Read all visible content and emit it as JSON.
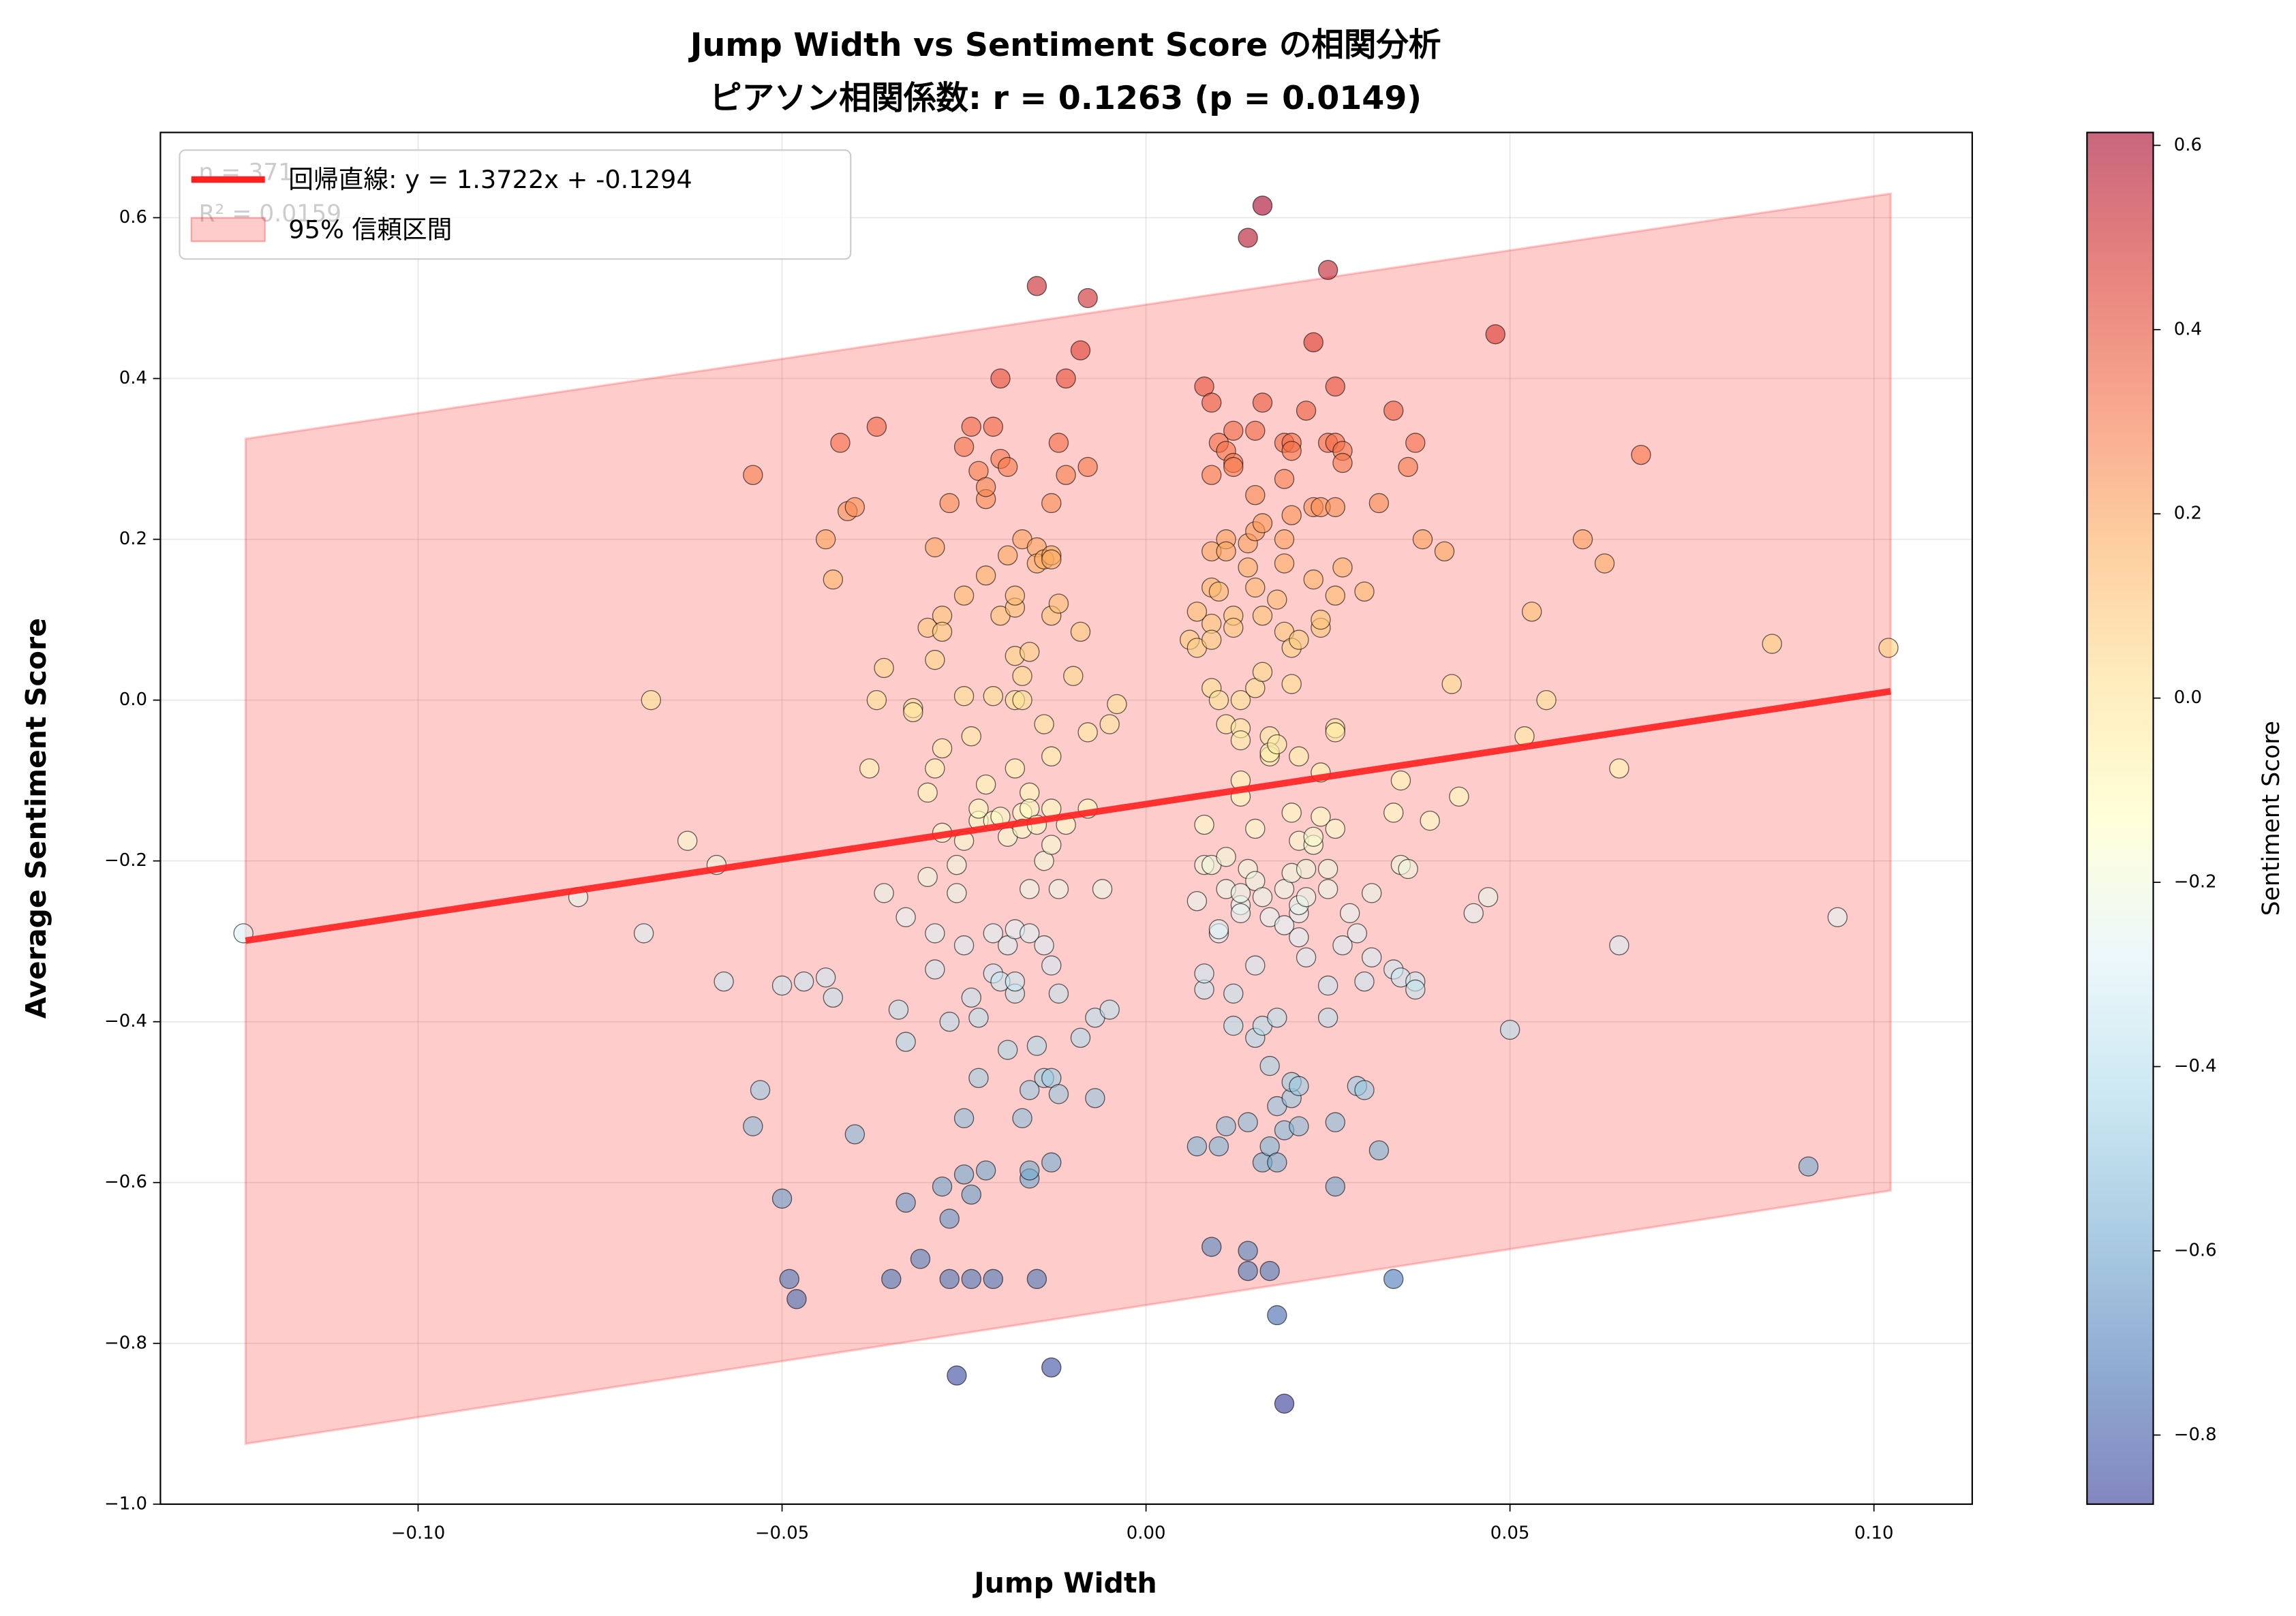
{
  "chart_data": {
    "type": "scatter",
    "title": "Jump Width vs Sentiment Score の相関分析",
    "subtitle": "ピアソン相関係数: r = 0.1263 (p = 0.0149)",
    "x_label": "Jump Width",
    "y_label": "Average Sentiment Score",
    "colorbar_label": "Sentiment Score",
    "annotations": [
      "n = 371",
      "R² = 0.0159"
    ],
    "xlim": [
      -0.1354,
      0.1135
    ],
    "ylim": [
      -1.0,
      0.706
    ],
    "xticks": [
      {
        "value": -0.1,
        "label": "−0.10"
      },
      {
        "value": -0.05,
        "label": "−0.05"
      },
      {
        "value": 0,
        "label": "0.00"
      },
      {
        "value": 0.05,
        "label": "0.05"
      },
      {
        "value": 0.1,
        "label": "0.10"
      }
    ],
    "yticks": [
      {
        "value": -1.0,
        "label": "−1.0"
      },
      {
        "value": -0.8,
        "label": "−0.8"
      },
      {
        "value": -0.6,
        "label": "−0.6"
      },
      {
        "value": -0.4,
        "label": "−0.4"
      },
      {
        "value": -0.2,
        "label": "−0.2"
      },
      {
        "value": 0,
        "label": "0.0"
      },
      {
        "value": 0.2,
        "label": "0.2"
      },
      {
        "value": 0.4,
        "label": "0.4"
      },
      {
        "value": 0.6,
        "label": "0.6"
      }
    ],
    "grid": true,
    "legend": "upper left",
    "clim": [
      -0.875,
      0.614
    ],
    "cticks": [
      {
        "value": -0.8,
        "label": "−0.8"
      },
      {
        "value": -0.6,
        "label": "−0.6"
      },
      {
        "value": -0.4,
        "label": "−0.4"
      },
      {
        "value": -0.2,
        "label": "−0.2"
      },
      {
        "value": 0,
        "label": "0.0"
      },
      {
        "value": 0.2,
        "label": "0.2"
      },
      {
        "value": 0.4,
        "label": "0.4"
      },
      {
        "value": 0.6,
        "label": "0.6"
      }
    ],
    "colormap": [
      "#313695",
      "#4575b4",
      "#74add1",
      "#abd9e9",
      "#e0f3f8",
      "#ffffbf",
      "#fee090",
      "#fdae61",
      "#f46d43",
      "#d73027",
      "#a50026"
    ],
    "regression": {
      "name": "回帰直線: y = 1.3722x + -0.1294",
      "slope": 1.3722,
      "intercept": -0.1294,
      "x_range": [
        -0.1237,
        0.1023
      ],
      "color": "#ff2020"
    },
    "band": {
      "name": "95% 信頼区間",
      "x": [
        -0.1237,
        0.1023
      ],
      "lower": [
        -0.925,
        -0.61
      ],
      "upper": [
        0.325,
        0.63
      ],
      "color": "#ff0000"
    },
    "x": [
      -0.124,
      -0.078,
      -0.069,
      -0.068,
      -0.063,
      -0.059,
      -0.058,
      -0.054,
      -0.054,
      -0.053,
      -0.05,
      -0.05,
      -0.049,
      -0.048,
      -0.047,
      -0.044,
      -0.043,
      -0.044,
      -0.043,
      -0.042,
      -0.041,
      -0.04,
      -0.04,
      -0.038,
      -0.037,
      -0.037,
      -0.036,
      -0.036,
      -0.035,
      -0.034,
      -0.033,
      -0.033,
      -0.033,
      -0.032,
      -0.032,
      -0.031,
      -0.03,
      -0.03,
      -0.03,
      -0.029,
      -0.029,
      -0.029,
      -0.029,
      -0.029,
      -0.028,
      -0.028,
      -0.028,
      -0.028,
      -0.028,
      -0.027,
      -0.027,
      -0.027,
      -0.027,
      -0.026,
      -0.026,
      -0.026,
      -0.025,
      -0.025,
      -0.025,
      -0.025,
      -0.025,
      -0.025,
      -0.025,
      -0.024,
      -0.024,
      -0.024,
      -0.024,
      -0.024,
      -0.023,
      -0.023,
      -0.023,
      -0.023,
      -0.023,
      -0.022,
      -0.022,
      -0.022,
      -0.022,
      -0.022,
      -0.021,
      -0.021,
      -0.021,
      -0.021,
      -0.021,
      -0.021,
      -0.02,
      -0.02,
      -0.02,
      -0.02,
      -0.02,
      -0.019,
      -0.019,
      -0.019,
      -0.019,
      -0.019,
      -0.018,
      -0.018,
      -0.018,
      -0.018,
      -0.018,
      -0.018,
      -0.018,
      -0.018,
      -0.017,
      -0.017,
      -0.017,
      -0.017,
      -0.017,
      -0.017,
      -0.016,
      -0.016,
      -0.016,
      -0.016,
      -0.016,
      -0.016,
      -0.016,
      -0.016,
      -0.015,
      -0.015,
      -0.015,
      -0.015,
      -0.015,
      -0.015,
      -0.014,
      -0.014,
      -0.014,
      -0.014,
      -0.014,
      -0.013,
      -0.013,
      -0.013,
      -0.013,
      -0.013,
      -0.013,
      -0.013,
      -0.013,
      -0.013,
      -0.013,
      -0.013,
      -0.012,
      -0.012,
      -0.012,
      -0.012,
      -0.012,
      -0.011,
      -0.011,
      -0.011,
      -0.01,
      -0.009,
      -0.009,
      -0.009,
      -0.008,
      -0.008,
      -0.008,
      -0.008,
      -0.007,
      -0.007,
      -0.006,
      -0.005,
      -0.005,
      -0.004,
      0.006,
      0.007,
      0.007,
      0.007,
      0.007,
      0.008,
      0.008,
      0.008,
      0.008,
      0.008,
      0.009,
      0.009,
      0.009,
      0.009,
      0.009,
      0.009,
      0.009,
      0.009,
      0.009,
      0.01,
      0.01,
      0.01,
      0.01,
      0.01,
      0.01,
      0.011,
      0.011,
      0.011,
      0.011,
      0.011,
      0.011,
      0.011,
      0.012,
      0.012,
      0.012,
      0.012,
      0.012,
      0.012,
      0.012,
      0.013,
      0.013,
      0.013,
      0.013,
      0.013,
      0.013,
      0.013,
      0.013,
      0.014,
      0.014,
      0.014,
      0.014,
      0.014,
      0.014,
      0.014,
      0.015,
      0.015,
      0.015,
      0.015,
      0.015,
      0.015,
      0.015,
      0.015,
      0.015,
      0.016,
      0.016,
      0.016,
      0.016,
      0.016,
      0.016,
      0.016,
      0.016,
      0.017,
      0.017,
      0.017,
      0.017,
      0.017,
      0.017,
      0.017,
      0.018,
      0.018,
      0.018,
      0.018,
      0.018,
      0.018,
      0.019,
      0.019,
      0.019,
      0.019,
      0.019,
      0.019,
      0.019,
      0.019,
      0.019,
      0.02,
      0.02,
      0.02,
      0.02,
      0.02,
      0.02,
      0.02,
      0.02,
      0.02,
      0.021,
      0.021,
      0.021,
      0.021,
      0.021,
      0.021,
      0.021,
      0.021,
      0.022,
      0.022,
      0.022,
      0.022,
      0.023,
      0.023,
      0.023,
      0.023,
      0.023,
      0.024,
      0.024,
      0.024,
      0.024,
      0.024,
      0.025,
      0.025,
      0.025,
      0.025,
      0.025,
      0.025,
      0.026,
      0.026,
      0.026,
      0.026,
      0.026,
      0.026,
      0.026,
      0.026,
      0.026,
      0.027,
      0.027,
      0.027,
      0.027,
      0.028,
      0.029,
      0.029,
      0.03,
      0.03,
      0.03,
      0.031,
      0.031,
      0.032,
      0.032,
      0.034,
      0.034,
      0.034,
      0.034,
      0.035,
      0.035,
      0.035,
      0.036,
      0.036,
      0.037,
      0.037,
      0.037,
      0.038,
      0.039,
      0.041,
      0.042,
      0.043,
      0.045,
      0.047,
      0.048,
      0.05,
      0.052,
      0.053,
      0.055,
      0.06,
      0.063,
      0.065,
      0.065,
      0.068,
      0.086,
      0.091,
      0.095,
      0.102
    ],
    "values": [
      -0.29,
      -0.245,
      -0.29,
      0.0,
      -0.175,
      -0.205,
      -0.35,
      0.28,
      -0.53,
      -0.485,
      -0.62,
      -0.355,
      -0.72,
      -0.745,
      -0.35,
      0.2,
      0.15,
      -0.345,
      -0.37,
      0.32,
      0.235,
      0.24,
      -0.54,
      -0.085,
      0.34,
      0.0,
      -0.24,
      0.04,
      -0.72,
      -0.385,
      -0.425,
      -0.625,
      -0.27,
      -0.01,
      -0.015,
      -0.695,
      0.09,
      -0.115,
      -0.22,
      0.05,
      -0.085,
      -0.29,
      0.19,
      -0.335,
      -0.605,
      0.105,
      -0.06,
      0.085,
      -0.165,
      0.245,
      -0.4,
      -0.72,
      -0.645,
      -0.24,
      -0.205,
      -0.84,
      0.315,
      -0.59,
      -0.52,
      0.13,
      0.005,
      -0.175,
      -0.305,
      -0.37,
      -0.045,
      -0.615,
      0.34,
      -0.72,
      -0.15,
      -0.135,
      0.285,
      -0.395,
      -0.47,
      0.155,
      0.25,
      -0.105,
      0.265,
      -0.585,
      -0.72,
      0.34,
      -0.34,
      -0.29,
      0.005,
      -0.15,
      0.3,
      0.4,
      0.105,
      -0.145,
      -0.35,
      -0.305,
      0.18,
      0.29,
      -0.17,
      -0.435,
      0.115,
      0.13,
      0.0,
      0.055,
      -0.365,
      -0.285,
      -0.35,
      -0.085,
      0.2,
      -0.52,
      0.0,
      0.03,
      -0.14,
      -0.16,
      -0.595,
      -0.485,
      -0.585,
      0.06,
      -0.115,
      -0.135,
      -0.29,
      -0.235,
      0.515,
      0.19,
      0.17,
      -0.72,
      -0.43,
      -0.155,
      -0.47,
      -0.305,
      -0.2,
      -0.03,
      0.175,
      0.18,
      -0.575,
      -0.47,
      -0.83,
      0.245,
      -0.33,
      -0.18,
      -0.135,
      -0.07,
      0.175,
      0.105,
      -0.235,
      0.32,
      -0.49,
      -0.365,
      0.12,
      0.28,
      -0.155,
      0.4,
      0.03,
      0.085,
      0.435,
      -0.42,
      -0.04,
      -0.135,
      0.29,
      0.5,
      -0.395,
      -0.495,
      -0.235,
      -0.385,
      -0.03,
      -0.005,
      0.075,
      0.11,
      -0.25,
      0.065,
      -0.555,
      0.39,
      -0.155,
      -0.205,
      -0.36,
      -0.34,
      0.14,
      0.37,
      0.095,
      0.075,
      0.015,
      0.28,
      -0.68,
      -0.205,
      0.185,
      0.32,
      -0.29,
      0.135,
      -0.285,
      -0.555,
      0.0,
      0.2,
      0.185,
      -0.195,
      -0.03,
      -0.235,
      0.31,
      -0.53,
      0.335,
      -0.365,
      0.295,
      0.29,
      0.105,
      0.09,
      -0.405,
      -0.255,
      -0.24,
      -0.035,
      -0.12,
      -0.1,
      -0.265,
      0.0,
      -0.05,
      0.195,
      0.165,
      -0.21,
      -0.685,
      -0.71,
      -0.525,
      0.575,
      -0.33,
      0.335,
      0.14,
      0.015,
      -0.16,
      -0.42,
      0.255,
      -0.225,
      0.21,
      -0.405,
      0.37,
      0.615,
      0.22,
      0.035,
      0.105,
      -0.575,
      -0.245,
      -0.555,
      -0.07,
      -0.045,
      -0.065,
      -0.27,
      -0.455,
      -0.71,
      -0.765,
      0.125,
      -0.055,
      -0.505,
      -0.575,
      -0.395,
      0.085,
      0.275,
      0.17,
      -0.235,
      0.32,
      -0.28,
      -0.535,
      0.2,
      -0.875,
      0.23,
      0.32,
      -0.14,
      0.065,
      0.02,
      -0.495,
      -0.475,
      0.31,
      -0.215,
      -0.295,
      0.075,
      -0.265,
      -0.53,
      -0.255,
      -0.07,
      -0.48,
      -0.175,
      0.36,
      -0.245,
      -0.21,
      -0.32,
      0.15,
      -0.18,
      0.445,
      0.24,
      -0.17,
      0.24,
      0.09,
      0.1,
      -0.09,
      -0.145,
      -0.235,
      0.32,
      -0.21,
      -0.395,
      -0.355,
      0.535,
      -0.525,
      -0.605,
      0.32,
      0.13,
      -0.035,
      -0.04,
      -0.16,
      0.39,
      0.24,
      0.31,
      0.295,
      -0.305,
      0.165,
      -0.265,
      -0.29,
      -0.48,
      0.135,
      -0.35,
      -0.485,
      -0.24,
      -0.32,
      -0.56,
      0.245,
      0.36,
      -0.72,
      -0.14,
      -0.335,
      -0.345,
      -0.1,
      -0.205,
      -0.21,
      0.29,
      -0.35,
      -0.36,
      0.32,
      0.2,
      -0.15,
      0.185,
      0.02,
      -0.12,
      -0.265,
      -0.245,
      0.455,
      -0.41,
      -0.045,
      0.11,
      0.0,
      0.2,
      0.17,
      -0.085,
      -0.305,
      0.305,
      0.07,
      -0.58,
      -0.27,
      0.065
    ]
  }
}
